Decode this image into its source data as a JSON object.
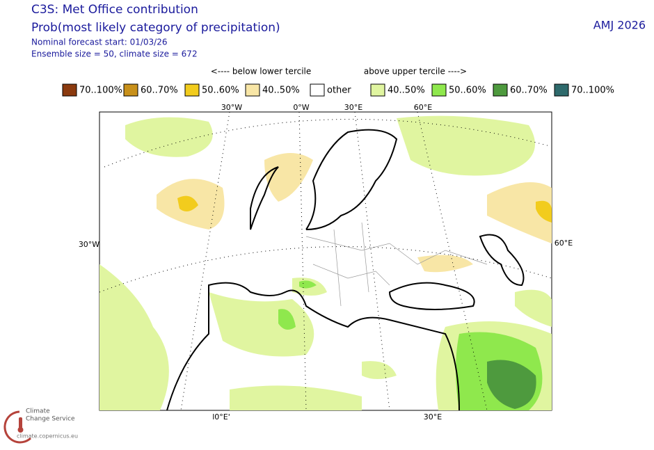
{
  "header": {
    "title": "C3S: Met Office contribution",
    "subtitle": "Prob(most likely category of precipitation)",
    "forecast_start": "Nominal forecast start: 01/03/26",
    "ensemble": "Ensemble size = 50, climate size = 672",
    "season": "AMJ 2026"
  },
  "legend": {
    "below_label": "<---- below lower tercile",
    "above_label": "above upper tercile ---->",
    "items": [
      {
        "label": "70..100%",
        "color": "#8b3a0f"
      },
      {
        "label": "60..70%",
        "color": "#c8901a"
      },
      {
        "label": "50..60%",
        "color": "#f2cc1d"
      },
      {
        "label": "40..50%",
        "color": "#f8e6a6"
      },
      {
        "label": "other",
        "color": "#ffffff"
      },
      {
        "label": "40..50%",
        "color": "#e0f5a0"
      },
      {
        "label": "50..60%",
        "color": "#8fe84d"
      },
      {
        "label": "60..70%",
        "color": "#4e9a3e"
      },
      {
        "label": "70..100%",
        "color": "#2e6a6c"
      }
    ]
  },
  "map": {
    "top_labels": [
      "30°W",
      "0°W",
      "30°E",
      "60°E"
    ],
    "left_label": "30°W",
    "right_label": "60°E",
    "bottom_labels": [
      "l0°E'",
      "30°E"
    ]
  },
  "logo": {
    "line1": "Climate",
    "line2": "Change Service",
    "url": "climate.copernicus.eu"
  }
}
